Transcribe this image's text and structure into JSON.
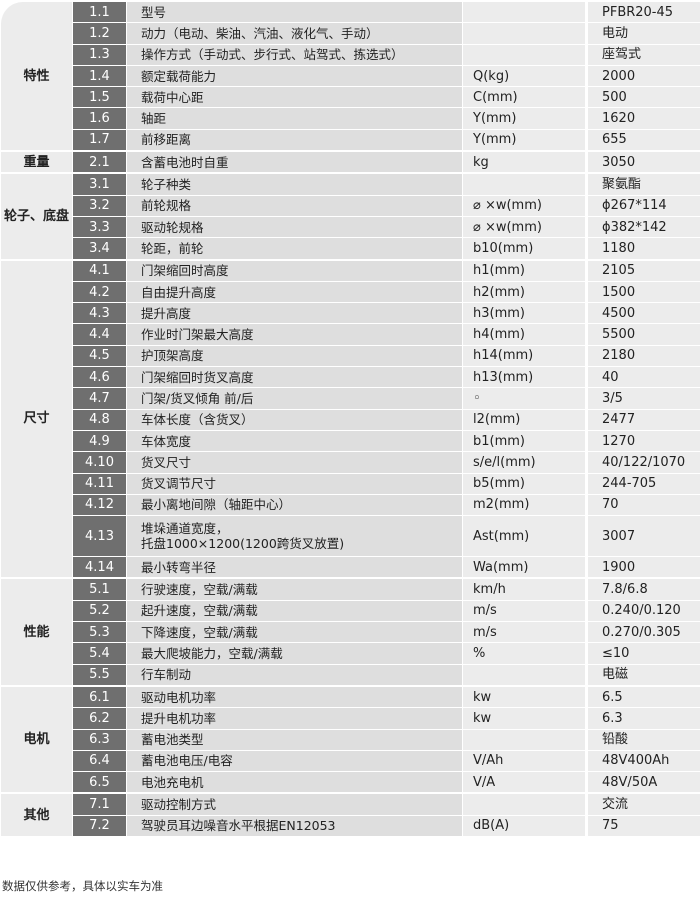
{
  "groups": [
    {
      "label": "特性",
      "rows": [
        {
          "no": "1.1",
          "name": "型号",
          "unit": "",
          "value": "PFBR20-45"
        },
        {
          "no": "1.2",
          "name": "动力（电动、柴油、汽油、液化气、手动）",
          "unit": "",
          "value": "电动"
        },
        {
          "no": "1.3",
          "name": "操作方式（手动式、步行式、站驾式、拣选式）",
          "unit": "",
          "value": "座驾式"
        },
        {
          "no": "1.4",
          "name": "额定载荷能力",
          "unit": "Q(kg)",
          "value": "2000"
        },
        {
          "no": "1.5",
          "name": "载荷中心距",
          "unit": "C(mm)",
          "value": "500"
        },
        {
          "no": "1.6",
          "name": "轴距",
          "unit": "Y(mm)",
          "value": "1620"
        },
        {
          "no": "1.7",
          "name": "前移距离",
          "unit": "Y(mm)",
          "value": "655"
        }
      ]
    },
    {
      "label": "重量",
      "rows": [
        {
          "no": "2.1",
          "name": "含蓄电池时自重",
          "unit": "kg",
          "value": "3050"
        }
      ]
    },
    {
      "label": "轮子、底盘",
      "rows": [
        {
          "no": "3.1",
          "name": "轮子种类",
          "unit": "",
          "value": "聚氨酯"
        },
        {
          "no": "3.2",
          "name": "前轮规格",
          "unit": "⌀ ×w(mm)",
          "value": "ϕ267*114"
        },
        {
          "no": "3.3",
          "name": "驱动轮规格",
          "unit": "⌀ ×w(mm)",
          "value": "ϕ382*142"
        },
        {
          "no": "3.4",
          "name": "轮距，前轮",
          "unit": "b10(mm)",
          "value": "1180"
        }
      ]
    },
    {
      "label": "尺寸",
      "rows": [
        {
          "no": "4.1",
          "name": "门架缩回时高度",
          "unit": "h1(mm)",
          "value": "2105"
        },
        {
          "no": "4.2",
          "name": "自由提升高度",
          "unit": "h2(mm)",
          "value": "1500"
        },
        {
          "no": "4.3",
          "name": "提升高度",
          "unit": "h3(mm)",
          "value": "4500"
        },
        {
          "no": "4.4",
          "name": "作业时门架最大高度",
          "unit": "h4(mm)",
          "value": "5500"
        },
        {
          "no": "4.5",
          "name": "护顶架高度",
          "unit": "h14(mm)",
          "value": "2180"
        },
        {
          "no": "4.6",
          "name": "门架缩回时货叉高度",
          "unit": "h13(mm)",
          "value": "40"
        },
        {
          "no": "4.7",
          "name": "门架/货叉倾角 前/后",
          "unit": "◦",
          "value": "3/5"
        },
        {
          "no": "4.8",
          "name": "车体长度（含货叉）",
          "unit": "l2(mm)",
          "value": "2477"
        },
        {
          "no": "4.9",
          "name": "车体宽度",
          "unit": "b1(mm)",
          "value": "1270"
        },
        {
          "no": "4.10",
          "name": "货叉尺寸",
          "unit": "s/e/l(mm)",
          "value": "40/122/1070"
        },
        {
          "no": "4.11",
          "name": "货叉调节尺寸",
          "unit": "b5(mm)",
          "value": "244-705"
        },
        {
          "no": "4.12",
          "name": "最小离地间隙（轴距中心）",
          "unit": "m2(mm)",
          "value": "70"
        },
        {
          "no": "4.13",
          "name": "堆垛通道宽度，\n托盘1000×1200(1200跨货叉放置)",
          "unit": "Ast(mm)",
          "value": "3007"
        },
        {
          "no": "4.14",
          "name": "最小转弯半径",
          "unit": "Wa(mm)",
          "value": "1900"
        }
      ]
    },
    {
      "label": "性能",
      "rows": [
        {
          "no": "5.1",
          "name": "行驶速度，空载/满载",
          "unit": "km/h",
          "value": "7.8/6.8"
        },
        {
          "no": "5.2",
          "name": "起升速度，空载/满载",
          "unit": "m/s",
          "value": "0.240/0.120"
        },
        {
          "no": "5.3",
          "name": "下降速度，空载/满载",
          "unit": "m/s",
          "value": "0.270/0.305"
        },
        {
          "no": "5.4",
          "name": "最大爬坡能力，空载/满载",
          "unit": "%",
          "value": "≤10"
        },
        {
          "no": "5.5",
          "name": "行车制动",
          "unit": "",
          "value": "电磁"
        }
      ]
    },
    {
      "label": "电机",
      "rows": [
        {
          "no": "6.1",
          "name": "驱动电机功率",
          "unit": "kw",
          "value": "6.5"
        },
        {
          "no": "6.2",
          "name": "提升电机功率",
          "unit": "kw",
          "value": "6.3"
        },
        {
          "no": "6.3",
          "name": "蓄电池类型",
          "unit": "",
          "value": "铅酸"
        },
        {
          "no": "6.4",
          "name": "蓄电池电压/电容",
          "unit": "V/Ah",
          "value": "48V400Ah"
        },
        {
          "no": "6.5",
          "name": "电池充电机",
          "unit": "V/A",
          "value": "48V/50A"
        }
      ]
    },
    {
      "label": "其他",
      "rows": [
        {
          "no": "7.1",
          "name": "驱动控制方式",
          "unit": "",
          "value": "交流"
        },
        {
          "no": "7.2",
          "name": "驾驶员耳边噪音水平根据EN12053",
          "unit": "dB(A)",
          "value": "75"
        }
      ]
    }
  ],
  "footnote": "数据仅供参考，具体以实车为准"
}
